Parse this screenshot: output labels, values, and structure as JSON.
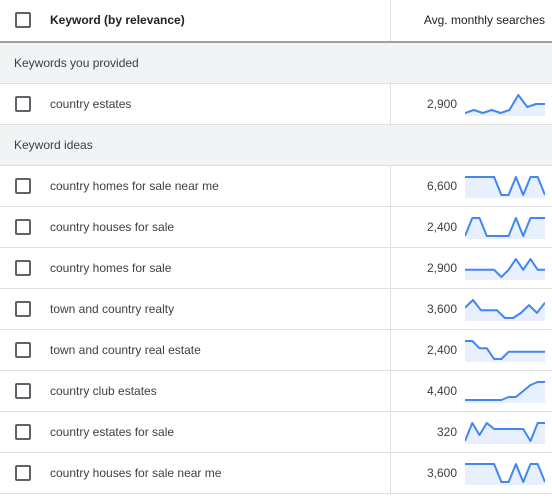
{
  "header": {
    "keyword_label": "Keyword (by relevance)",
    "avg_label": "Avg. monthly searches"
  },
  "sections": [
    {
      "label": "Keywords you provided",
      "rows": [
        {
          "keyword": "country estates",
          "searches": "2,900",
          "trend": [
            2,
            3,
            2,
            3,
            2,
            3,
            8,
            4,
            5,
            5
          ]
        }
      ]
    },
    {
      "label": "Keyword ideas",
      "rows": [
        {
          "keyword": "country homes for sale near me",
          "searches": "6,600",
          "trend": [
            8,
            8,
            8,
            8,
            8,
            2,
            2,
            8,
            2,
            8,
            8,
            2
          ]
        },
        {
          "keyword": "country houses for sale",
          "searches": "2,400",
          "trend": [
            2,
            8,
            8,
            2,
            2,
            2,
            2,
            8,
            2,
            8,
            8,
            8
          ]
        },
        {
          "keyword": "country homes for sale",
          "searches": "2,900",
          "trend": [
            4,
            4,
            4,
            4,
            4,
            2,
            4,
            7,
            4,
            7,
            4,
            4
          ]
        },
        {
          "keyword": "town and country realty",
          "searches": "3,600",
          "trend": [
            6,
            9,
            5,
            5,
            5,
            2,
            2,
            4,
            7,
            4,
            8
          ]
        },
        {
          "keyword": "town and country real estate",
          "searches": "2,400",
          "trend": [
            8,
            8,
            6,
            6,
            3,
            3,
            5,
            5,
            5,
            5,
            5,
            5
          ]
        },
        {
          "keyword": "country club estates",
          "searches": "4,400",
          "trend": [
            3,
            3,
            3,
            3,
            3,
            3,
            4,
            4,
            6,
            8,
            9,
            9
          ]
        },
        {
          "keyword": "country estates for sale",
          "searches": "320",
          "trend": [
            3,
            6,
            4,
            6,
            5,
            5,
            5,
            5,
            5,
            3,
            6,
            6
          ]
        },
        {
          "keyword": "country houses for sale near me",
          "searches": "3,600",
          "trend": [
            8,
            8,
            8,
            8,
            8,
            2,
            2,
            8,
            2,
            8,
            8,
            2
          ]
        }
      ]
    }
  ],
  "colors": {
    "spark_line": "#4285f4",
    "spark_fill": "#e8f0fe",
    "group_bg": "#f1f3f4"
  }
}
